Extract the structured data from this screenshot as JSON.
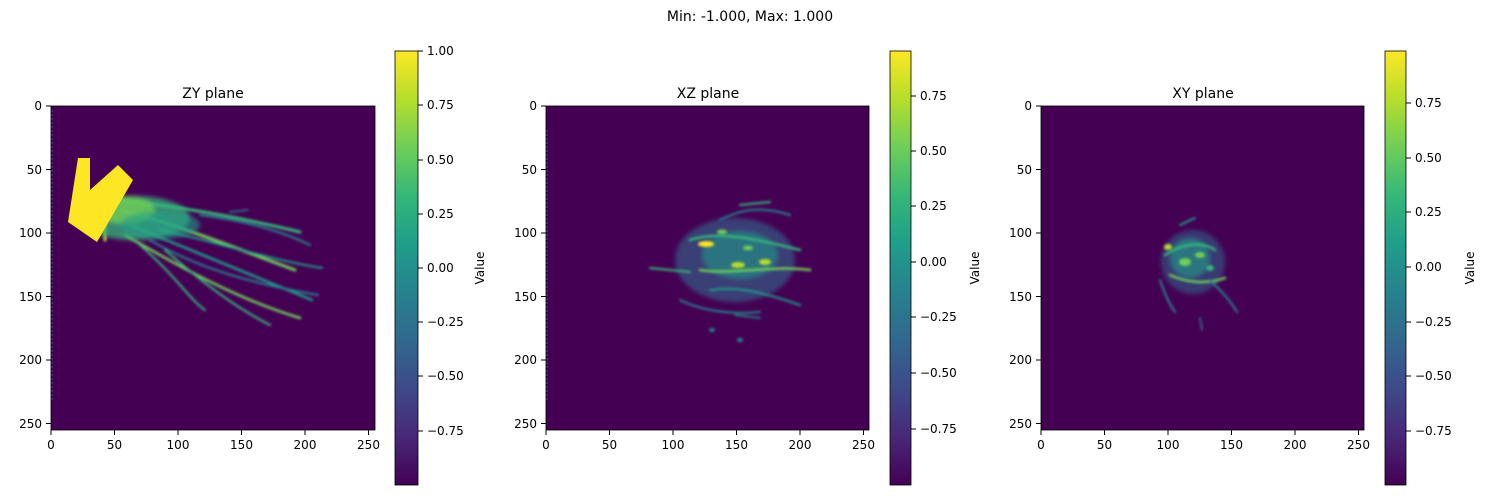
{
  "figure": {
    "suptitle": "Min: -1.000, Max: 1.000"
  },
  "chart_data": [
    {
      "type": "heatmap",
      "title": "ZY plane",
      "xlim": [
        0,
        255
      ],
      "ylim": [
        255,
        0
      ],
      "xticks": [
        "0",
        "50",
        "100",
        "150",
        "200",
        "250"
      ],
      "yticks": [
        "0",
        "50",
        "100",
        "150",
        "200",
        "250"
      ],
      "colorbar": {
        "label": "Value",
        "ticks": [
          "1.00",
          "0.75",
          "0.50",
          "0.25",
          "0.00",
          "−0.25",
          "−0.50",
          "−0.75"
        ],
        "range": [
          -1.0,
          1.0
        ]
      },
      "features": "saturated block near x 15-60, y 40-105 with plume streaks extending to x ~215, y 80-170"
    },
    {
      "type": "heatmap",
      "title": "XZ plane",
      "xlim": [
        0,
        255
      ],
      "ylim": [
        255,
        0
      ],
      "xticks": [
        "0",
        "50",
        "100",
        "150",
        "200",
        "250"
      ],
      "yticks": [
        "0",
        "50",
        "100",
        "150",
        "200",
        "250"
      ],
      "colorbar": {
        "label": "Value",
        "ticks": [
          "0.75",
          "0.50",
          "0.25",
          "0.00",
          "−0.25",
          "−0.50",
          "−0.75"
        ],
        "range": [
          -1.0,
          0.95
        ]
      },
      "features": "diffuse cloud centered near x 150, y 125"
    },
    {
      "type": "heatmap",
      "title": "XY plane",
      "xlim": [
        0,
        255
      ],
      "ylim": [
        255,
        0
      ],
      "xticks": [
        "0",
        "50",
        "100",
        "150",
        "200",
        "250"
      ],
      "yticks": [
        "0",
        "50",
        "100",
        "150",
        "200",
        "250"
      ],
      "colorbar": {
        "label": "Value",
        "ticks": [
          "0.75",
          "0.50",
          "0.25",
          "0.00",
          "−0.25",
          "−0.50",
          "−0.75"
        ],
        "range": [
          -1.0,
          0.98
        ]
      },
      "features": "compact cluster centered near x 120, y 130"
    }
  ],
  "colors": {
    "background": "#440154",
    "colormap": [
      "#440154",
      "#482878",
      "#3e4a89",
      "#31688e",
      "#26828e",
      "#1f9e89",
      "#35b779",
      "#6ece58",
      "#b5de2b",
      "#fde725"
    ]
  }
}
